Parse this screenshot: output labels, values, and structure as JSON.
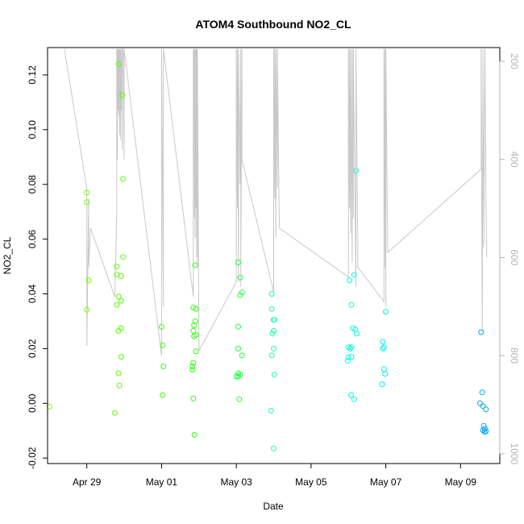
{
  "chart_data": {
    "type": "scatter",
    "title": "ATOM4 Southbound NO2_CL",
    "xlabel": "Date",
    "ylabel": "NO2_CL",
    "x_unit": "days since Apr 29 00:00",
    "xlim": [
      -1.05,
      11.05
    ],
    "ylim": [
      -0.022,
      0.13
    ],
    "x_ticks": [
      {
        "value": 0,
        "label": "Apr 29"
      },
      {
        "value": 2,
        "label": "May 01"
      },
      {
        "value": 4,
        "label": "May 03"
      },
      {
        "value": 6,
        "label": "May 05"
      },
      {
        "value": 8,
        "label": "May 07"
      },
      {
        "value": 10,
        "label": "May 09"
      }
    ],
    "y_ticks": [
      {
        "value": -0.02,
        "label": "-0.02"
      },
      {
        "value": 0.0,
        "label": "0.00"
      },
      {
        "value": 0.02,
        "label": "0.02"
      },
      {
        "value": 0.04,
        "label": "0.04"
      },
      {
        "value": 0.06,
        "label": "0.06"
      },
      {
        "value": 0.08,
        "label": "0.08"
      },
      {
        "value": 0.1,
        "label": "0.10"
      },
      {
        "value": 0.12,
        "label": "0.12"
      }
    ],
    "secondary_axis": {
      "side": "right",
      "color": "#b3b3b3",
      "ylim": [
        1020,
        172
      ],
      "ticks": [
        {
          "value": 200,
          "label": "200"
        },
        {
          "value": 400,
          "label": "400"
        },
        {
          "value": 600,
          "label": "600"
        },
        {
          "value": 800,
          "label": "800"
        },
        {
          "value": 1000,
          "label": "1000"
        }
      ]
    },
    "points": [
      {
        "x": -1.0,
        "y": -0.0012,
        "color": "#80ff00"
      },
      {
        "x": 0.0,
        "y": 0.077,
        "color": "#6cff00"
      },
      {
        "x": 0.0,
        "y": 0.0735,
        "color": "#6cff00"
      },
      {
        "x": 0.05,
        "y": 0.045,
        "color": "#6cff00"
      },
      {
        "x": 0.0,
        "y": 0.0342,
        "color": "#6cff00"
      },
      {
        "x": 0.75,
        "y": -0.0035,
        "color": "#5cff00"
      },
      {
        "x": 0.8,
        "y": 0.05,
        "color": "#5cff00"
      },
      {
        "x": 0.8,
        "y": 0.047,
        "color": "#5cff00"
      },
      {
        "x": 0.8,
        "y": 0.036,
        "color": "#5cff00"
      },
      {
        "x": 0.85,
        "y": 0.124,
        "color": "#58ff00"
      },
      {
        "x": 0.85,
        "y": 0.039,
        "color": "#58ff00"
      },
      {
        "x": 0.85,
        "y": 0.0265,
        "color": "#58ff00"
      },
      {
        "x": 0.85,
        "y": 0.011,
        "color": "#58ff00"
      },
      {
        "x": 0.87,
        "y": 0.0065,
        "color": "#58ff00"
      },
      {
        "x": 0.92,
        "y": 0.0465,
        "color": "#55ff00"
      },
      {
        "x": 0.92,
        "y": 0.0375,
        "color": "#55ff00"
      },
      {
        "x": 0.92,
        "y": 0.0275,
        "color": "#55ff00"
      },
      {
        "x": 0.92,
        "y": 0.017,
        "color": "#55ff00"
      },
      {
        "x": 0.95,
        "y": 0.1125,
        "color": "#55ff00"
      },
      {
        "x": 0.97,
        "y": 0.082,
        "color": "#55ff00"
      },
      {
        "x": 0.97,
        "y": 0.0535,
        "color": "#55ff00"
      },
      {
        "x": 2.0,
        "y": 0.028,
        "color": "#3cff00"
      },
      {
        "x": 2.03,
        "y": 0.0212,
        "color": "#3cff00"
      },
      {
        "x": 2.05,
        "y": 0.0135,
        "color": "#3cff00"
      },
      {
        "x": 2.03,
        "y": 0.003,
        "color": "#3cff00"
      },
      {
        "x": 2.85,
        "y": 0.035,
        "color": "#2fff0a"
      },
      {
        "x": 2.9,
        "y": 0.0505,
        "color": "#2fff0a"
      },
      {
        "x": 2.92,
        "y": 0.0345,
        "color": "#2fff0a"
      },
      {
        "x": 2.9,
        "y": 0.03,
        "color": "#2fff0a"
      },
      {
        "x": 2.87,
        "y": 0.0285,
        "color": "#2fff0a"
      },
      {
        "x": 2.85,
        "y": 0.0265,
        "color": "#2fff0a"
      },
      {
        "x": 2.87,
        "y": 0.0245,
        "color": "#2fff0a"
      },
      {
        "x": 2.92,
        "y": 0.025,
        "color": "#2fff0a"
      },
      {
        "x": 2.92,
        "y": 0.019,
        "color": "#2fff0a"
      },
      {
        "x": 2.85,
        "y": 0.0148,
        "color": "#2fff0a"
      },
      {
        "x": 2.83,
        "y": 0.0135,
        "color": "#2fff0a"
      },
      {
        "x": 2.83,
        "y": 0.0123,
        "color": "#2fff0a"
      },
      {
        "x": 2.85,
        "y": 0.0018,
        "color": "#2fff0a"
      },
      {
        "x": 2.88,
        "y": -0.0115,
        "color": "#2fff0a"
      },
      {
        "x": 4.05,
        "y": 0.0515,
        "color": "#20ff40"
      },
      {
        "x": 4.1,
        "y": 0.046,
        "color": "#20ff40"
      },
      {
        "x": 4.1,
        "y": 0.0395,
        "color": "#20ff40"
      },
      {
        "x": 4.15,
        "y": 0.0405,
        "color": "#20ff40"
      },
      {
        "x": 4.05,
        "y": 0.028,
        "color": "#20ff40"
      },
      {
        "x": 4.05,
        "y": 0.02,
        "color": "#20ff40"
      },
      {
        "x": 4.15,
        "y": 0.0175,
        "color": "#20ff40"
      },
      {
        "x": 4.05,
        "y": 0.011,
        "color": "#20ff40"
      },
      {
        "x": 4.0,
        "y": 0.0098,
        "color": "#20ff40"
      },
      {
        "x": 4.05,
        "y": 0.0098,
        "color": "#20ff40"
      },
      {
        "x": 4.1,
        "y": 0.0105,
        "color": "#20ff40"
      },
      {
        "x": 4.08,
        "y": 0.0015,
        "color": "#20ff40"
      },
      {
        "x": 4.95,
        "y": 0.04,
        "color": "#1affa0"
      },
      {
        "x": 4.95,
        "y": 0.0345,
        "color": "#1affa0"
      },
      {
        "x": 5.0,
        "y": 0.0305,
        "color": "#1affa0"
      },
      {
        "x": 5.02,
        "y": 0.0305,
        "color": "#1affa0"
      },
      {
        "x": 5.0,
        "y": 0.0265,
        "color": "#1affa0"
      },
      {
        "x": 4.97,
        "y": 0.0255,
        "color": "#1affa0"
      },
      {
        "x": 5.0,
        "y": 0.02,
        "color": "#1affa0"
      },
      {
        "x": 4.95,
        "y": 0.0175,
        "color": "#1affa0"
      },
      {
        "x": 5.02,
        "y": 0.0105,
        "color": "#1affa0"
      },
      {
        "x": 4.93,
        "y": -0.0027,
        "color": "#1affa0"
      },
      {
        "x": 5.0,
        "y": -0.0165,
        "color": "#1affa0"
      },
      {
        "x": 7.03,
        "y": 0.045,
        "color": "#00ffe0"
      },
      {
        "x": 7.15,
        "y": 0.047,
        "color": "#00ffe0"
      },
      {
        "x": 7.2,
        "y": 0.085,
        "color": "#00ffe0"
      },
      {
        "x": 7.08,
        "y": 0.036,
        "color": "#00ffe0"
      },
      {
        "x": 7.12,
        "y": 0.0275,
        "color": "#00ffe0"
      },
      {
        "x": 7.18,
        "y": 0.027,
        "color": "#00ffe0"
      },
      {
        "x": 7.22,
        "y": 0.0255,
        "color": "#00ffe0"
      },
      {
        "x": 7.0,
        "y": 0.0205,
        "color": "#00ffe0"
      },
      {
        "x": 7.05,
        "y": 0.02,
        "color": "#00ffe0"
      },
      {
        "x": 7.08,
        "y": 0.0205,
        "color": "#00ffe0"
      },
      {
        "x": 7.0,
        "y": 0.0168,
        "color": "#00ffe0"
      },
      {
        "x": 7.08,
        "y": 0.017,
        "color": "#00ffe0"
      },
      {
        "x": 6.98,
        "y": 0.0155,
        "color": "#00ffe0"
      },
      {
        "x": 7.07,
        "y": 0.003,
        "color": "#00ffe0"
      },
      {
        "x": 7.15,
        "y": 0.0015,
        "color": "#00ffe0"
      },
      {
        "x": 7.92,
        "y": 0.0225,
        "color": "#00f0f0"
      },
      {
        "x": 7.95,
        "y": 0.0205,
        "color": "#00f0f0"
      },
      {
        "x": 7.92,
        "y": 0.02,
        "color": "#00f0f0"
      },
      {
        "x": 8.0,
        "y": 0.0335,
        "color": "#00f0f0"
      },
      {
        "x": 7.95,
        "y": 0.0125,
        "color": "#00f0f0"
      },
      {
        "x": 7.98,
        "y": 0.0108,
        "color": "#00f0f0"
      },
      {
        "x": 7.9,
        "y": 0.007,
        "color": "#00f0f0"
      },
      {
        "x": 10.55,
        "y": 0.026,
        "color": "#00a8f0"
      },
      {
        "x": 10.58,
        "y": 0.004,
        "color": "#00a8f0"
      },
      {
        "x": 10.52,
        "y": 0.0,
        "color": "#00a8f0"
      },
      {
        "x": 10.6,
        "y": -0.001,
        "color": "#00a8f0"
      },
      {
        "x": 10.68,
        "y": -0.0022,
        "color": "#00a8f0"
      },
      {
        "x": 10.62,
        "y": -0.0082,
        "color": "#00a8f0"
      },
      {
        "x": 10.65,
        "y": -0.0093,
        "color": "#00a8f0"
      },
      {
        "x": 10.6,
        "y": -0.0098,
        "color": "#00a8f0"
      },
      {
        "x": 10.68,
        "y": -0.0102,
        "color": "#00a8f0"
      },
      {
        "x": 10.64,
        "y": -0.0104,
        "color": "#00a8f0"
      }
    ],
    "track_series": {
      "name": "secondary series (right axis)",
      "color": "#c8c8c8",
      "x": [
        -0.6,
        0.0,
        0.0,
        0.03,
        0.05,
        0.05,
        0.1,
        0.75,
        0.8,
        0.8,
        0.82,
        0.82,
        0.84,
        0.84,
        0.86,
        0.86,
        0.88,
        0.88,
        0.9,
        0.9,
        0.92,
        0.92,
        0.95,
        0.95,
        0.97,
        1.0,
        1.0,
        2.0,
        2.0,
        2.05,
        2.05,
        2.85,
        2.85,
        2.86,
        2.86,
        2.88,
        2.88,
        2.9,
        2.9,
        2.92,
        2.92,
        2.94,
        2.94,
        2.96,
        2.96,
        3.0,
        4.0,
        4.0,
        4.03,
        4.03,
        4.06,
        4.06,
        4.1,
        4.12,
        4.12,
        4.15,
        4.15,
        5.0,
        5.0,
        5.03,
        5.03,
        5.06,
        5.06,
        5.1,
        5.1,
        5.15,
        7.0,
        7.0,
        7.03,
        7.03,
        7.06,
        7.06,
        7.1,
        7.1,
        7.13,
        7.13,
        7.2,
        7.2,
        7.25,
        7.25,
        7.95,
        7.95,
        7.98,
        7.98,
        8.0,
        8.0,
        8.05,
        10.55,
        10.55,
        10.58,
        10.6,
        10.62,
        10.65,
        10.68,
        10.7
      ],
      "y": [
        175,
        460,
        780,
        600,
        480,
        620,
        540,
        680,
        510,
        175,
        400,
        175,
        300,
        175,
        310,
        175,
        350,
        175,
        360,
        175,
        300,
        175,
        380,
        175,
        175,
        400,
        175,
        800,
        175,
        700,
        175,
        680,
        175,
        400,
        175,
        520,
        175,
        560,
        175,
        500,
        175,
        600,
        175,
        620,
        175,
        790,
        650,
        175,
        500,
        175,
        650,
        175,
        450,
        175,
        660,
        175,
        400,
        670,
        175,
        480,
        175,
        560,
        175,
        460,
        175,
        540,
        640,
        175,
        500,
        175,
        550,
        175,
        610,
        175,
        520,
        175,
        660,
        175,
        560,
        620,
        690,
        175,
        620,
        175,
        700,
        175,
        590,
        420,
        175,
        750,
        175,
        580,
        175,
        480,
        600
      ]
    }
  }
}
